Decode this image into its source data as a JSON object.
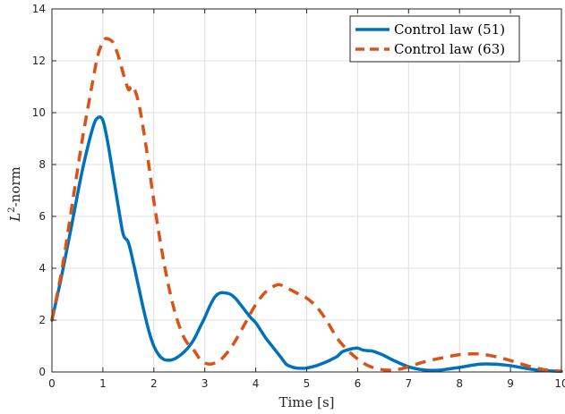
{
  "chart_data": {
    "type": "line",
    "xlabel": "Time [s]",
    "ylabel": {
      "base": "L",
      "sup": "2",
      "rest": "-norm"
    },
    "xlim": [
      0,
      10
    ],
    "ylim": [
      0,
      14
    ],
    "xticks": [
      "0",
      "1",
      "2",
      "3",
      "4",
      "5",
      "6",
      "7",
      "8",
      "9",
      "10"
    ],
    "yticks": [
      "0",
      "2",
      "4",
      "6",
      "8",
      "10",
      "12",
      "14"
    ],
    "grid": true,
    "legend_position": "top-right",
    "series": [
      {
        "name": "Control law (51)",
        "color": "#0072bd",
        "style": "solid",
        "x": [
          0,
          0.2,
          0.4,
          0.6,
          0.8,
          0.9,
          1.0,
          1.1,
          1.2,
          1.3,
          1.4,
          1.5,
          1.6,
          1.7,
          1.8,
          1.9,
          2.0,
          2.1,
          2.2,
          2.3,
          2.4,
          2.5,
          2.6,
          2.7,
          2.8,
          2.9,
          3.0,
          3.1,
          3.2,
          3.3,
          3.4,
          3.5,
          3.6,
          3.7,
          3.8,
          3.9,
          4.0,
          4.1,
          4.2,
          4.3,
          4.4,
          4.5,
          4.6,
          4.7,
          4.8,
          4.9,
          5.0,
          5.2,
          5.4,
          5.5,
          5.6,
          5.7,
          5.8,
          5.9,
          6.0,
          6.1,
          6.2,
          6.3,
          6.5,
          6.7,
          7.0,
          7.3,
          7.6,
          8.0,
          8.4,
          8.7,
          9.0,
          9.3,
          9.6,
          10.0
        ],
        "y": [
          2.0,
          3.8,
          5.8,
          7.8,
          9.4,
          9.8,
          9.7,
          8.8,
          7.6,
          6.4,
          5.3,
          5.0,
          4.2,
          3.3,
          2.4,
          1.6,
          1.0,
          0.65,
          0.48,
          0.45,
          0.5,
          0.62,
          0.78,
          1.0,
          1.3,
          1.7,
          2.1,
          2.55,
          2.9,
          3.05,
          3.05,
          3.0,
          2.85,
          2.6,
          2.35,
          2.1,
          1.9,
          1.6,
          1.3,
          1.05,
          0.8,
          0.55,
          0.3,
          0.2,
          0.15,
          0.14,
          0.15,
          0.25,
          0.4,
          0.5,
          0.6,
          0.78,
          0.85,
          0.9,
          0.92,
          0.85,
          0.82,
          0.8,
          0.65,
          0.45,
          0.2,
          0.08,
          0.07,
          0.18,
          0.3,
          0.3,
          0.24,
          0.14,
          0.06,
          0.02
        ]
      },
      {
        "name": "Control law (63)",
        "color": "#d95319",
        "style": "dashed",
        "x": [
          0,
          0.2,
          0.4,
          0.6,
          0.8,
          0.9,
          1.0,
          1.05,
          1.1,
          1.2,
          1.3,
          1.4,
          1.5,
          1.55,
          1.6,
          1.7,
          1.8,
          1.9,
          2.0,
          2.2,
          2.4,
          2.6,
          2.8,
          2.9,
          3.0,
          3.1,
          3.2,
          3.3,
          3.4,
          3.5,
          3.6,
          3.8,
          4.0,
          4.2,
          4.4,
          4.5,
          4.6,
          4.8,
          5.0,
          5.2,
          5.4,
          5.6,
          5.8,
          6.0,
          6.2,
          6.4,
          6.6,
          6.8,
          7.0,
          7.2,
          7.5,
          7.8,
          8.0,
          8.3,
          8.5,
          8.8,
          9.1,
          9.4,
          9.7,
          10.0
        ],
        "y": [
          2.0,
          4.0,
          6.5,
          9.0,
          11.2,
          12.2,
          12.75,
          12.85,
          12.85,
          12.7,
          12.2,
          11.5,
          10.9,
          11.0,
          11.0,
          10.4,
          9.3,
          8.0,
          6.6,
          4.2,
          2.4,
          1.3,
          0.8,
          0.5,
          0.35,
          0.3,
          0.35,
          0.45,
          0.65,
          0.9,
          1.2,
          1.9,
          2.6,
          3.1,
          3.35,
          3.35,
          3.25,
          3.05,
          2.85,
          2.5,
          1.95,
          1.3,
          0.85,
          0.5,
          0.25,
          0.12,
          0.07,
          0.1,
          0.2,
          0.33,
          0.48,
          0.6,
          0.67,
          0.7,
          0.67,
          0.55,
          0.38,
          0.2,
          0.08,
          0.03
        ]
      }
    ]
  },
  "colors": {
    "axis": "#262626",
    "grid": "#dfdfdf",
    "background": "#ffffff"
  }
}
